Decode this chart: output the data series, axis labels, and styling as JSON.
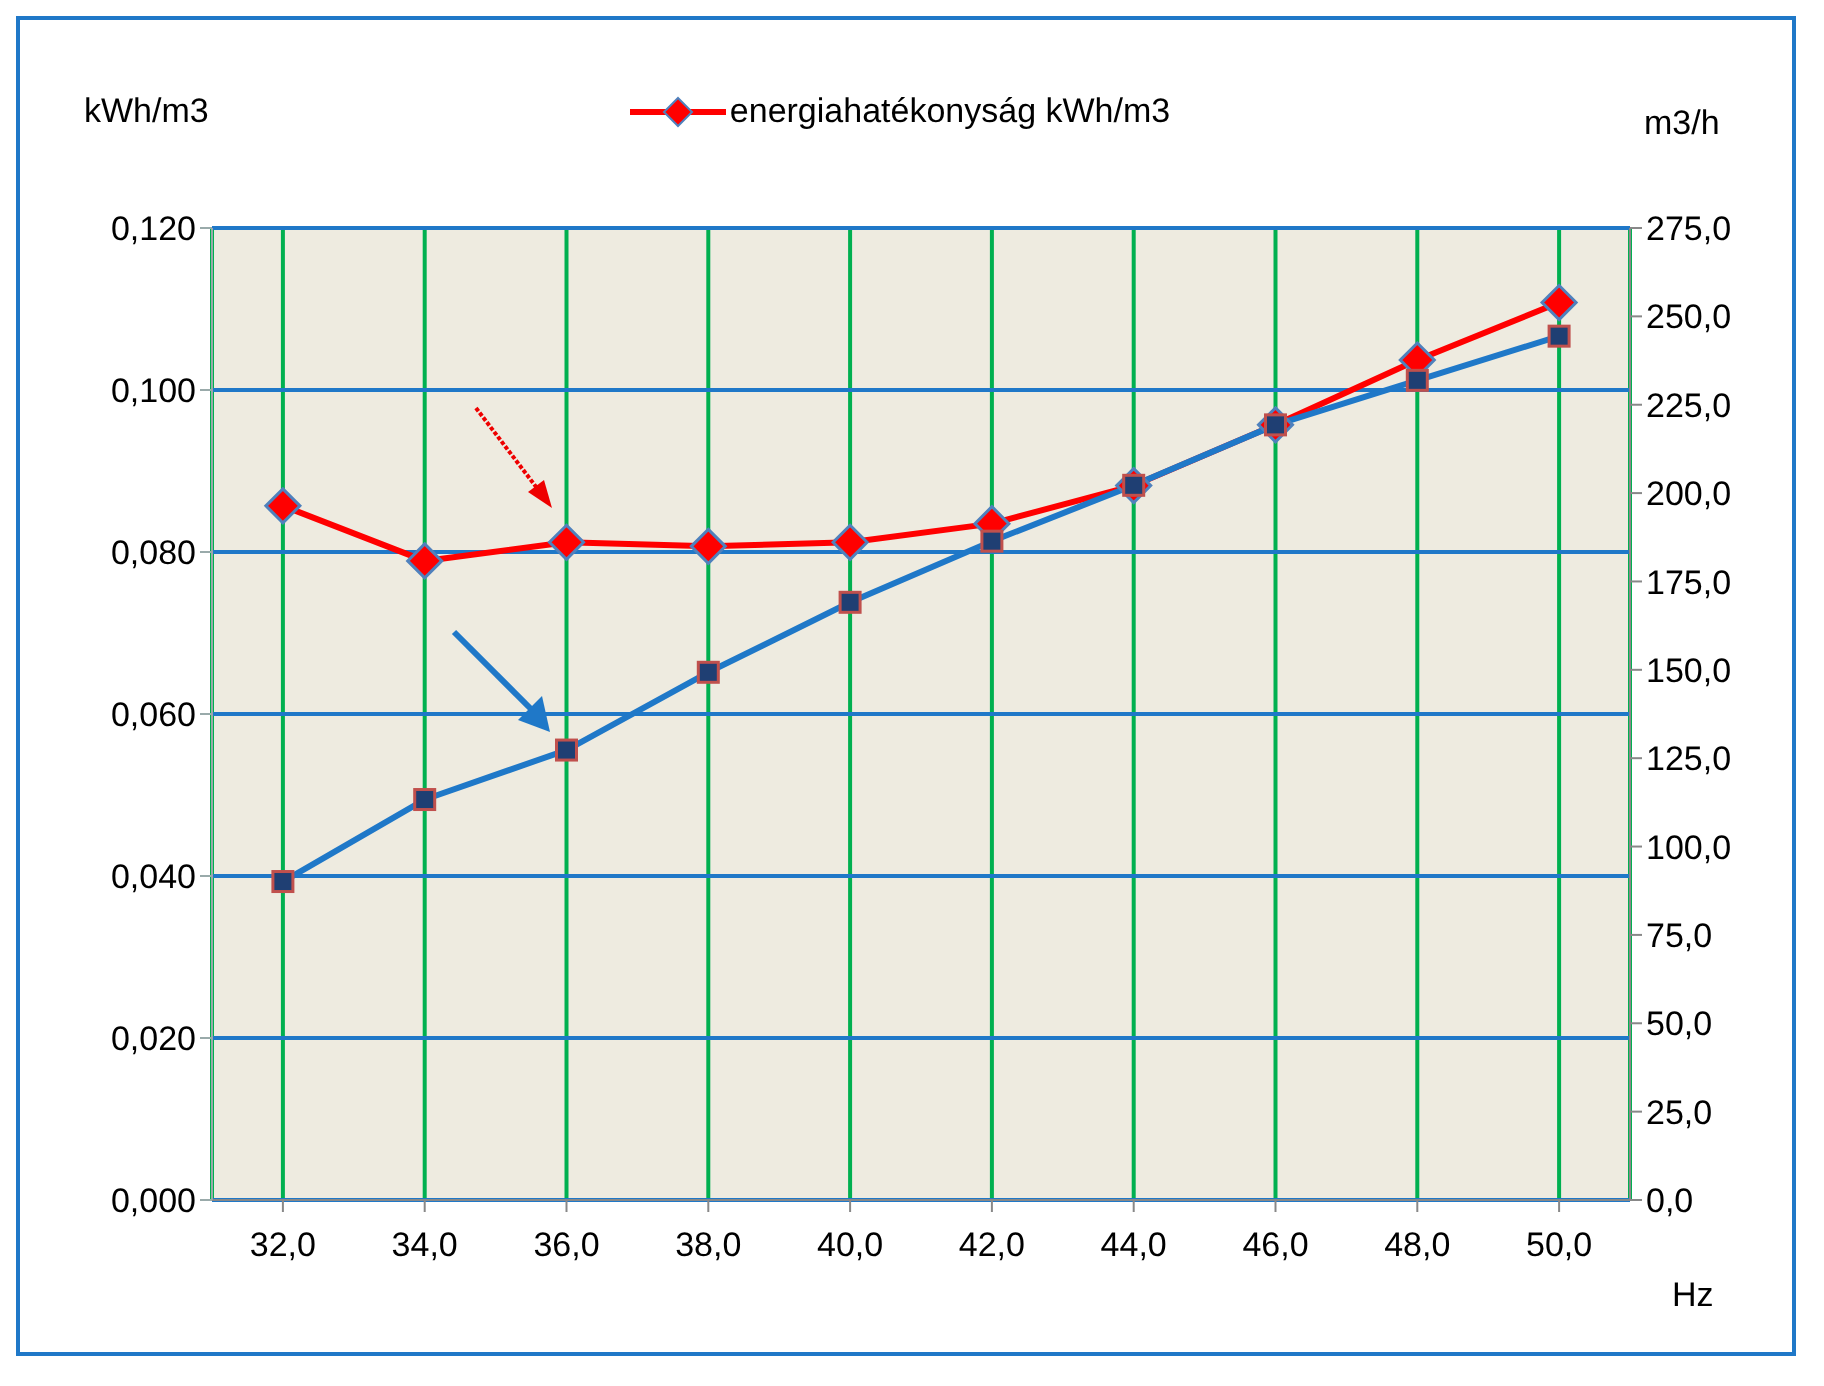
{
  "chart_data": {
    "type": "line",
    "legend": "top",
    "grid": true,
    "xlabel": "Hz",
    "ylabel": "kWh/m3",
    "y2label": "m3/h",
    "categories": [
      "32,0",
      "34,0",
      "36,0",
      "38,0",
      "40,0",
      "42,0",
      "44,0",
      "46,0",
      "48,0",
      "50,0"
    ],
    "series": [
      {
        "name": "energiahatékonyság kWh/m3",
        "color": "#ff0000",
        "marker": "diamond",
        "values": [
          0.0857,
          0.0789,
          0.0812,
          0.0807,
          0.0812,
          0.0835,
          0.0882,
          0.0957,
          0.1037,
          0.1108
        ]
      },
      {
        "color": "#1f78c8",
        "marker": "square",
        "axis": "y2",
        "values": [
          90.1,
          113.3,
          127.3,
          149.3,
          169.1,
          186.4,
          202.2,
          219.3,
          231.9,
          244.4
        ]
      }
    ],
    "ylim": [
      0,
      0.12
    ],
    "yticks": [
      {
        "value": 0,
        "label": "0,000"
      },
      {
        "value": 0.02,
        "label": "0,020"
      },
      {
        "value": 0.04,
        "label": "0,040"
      },
      {
        "value": 0.06,
        "label": "0,060"
      },
      {
        "value": 0.08,
        "label": "0,080"
      },
      {
        "value": 0.1,
        "label": "0,100"
      },
      {
        "value": 0.12,
        "label": "0,120"
      }
    ],
    "y2lim": [
      0,
      275
    ],
    "y2ticks": [
      {
        "value": 0,
        "label": "0,0"
      },
      {
        "value": 25,
        "label": "25,0"
      },
      {
        "value": 50,
        "label": "50,0"
      },
      {
        "value": 75,
        "label": "75,0"
      },
      {
        "value": 100,
        "label": "100,0"
      },
      {
        "value": 125,
        "label": "125,0"
      },
      {
        "value": 150,
        "label": "150,0"
      },
      {
        "value": 175,
        "label": "175,0"
      },
      {
        "value": 200,
        "label": "200,0"
      },
      {
        "value": 225,
        "label": "225,0"
      },
      {
        "value": 250,
        "label": "250,0"
      },
      {
        "value": 275,
        "label": "275,0"
      }
    ]
  }
}
